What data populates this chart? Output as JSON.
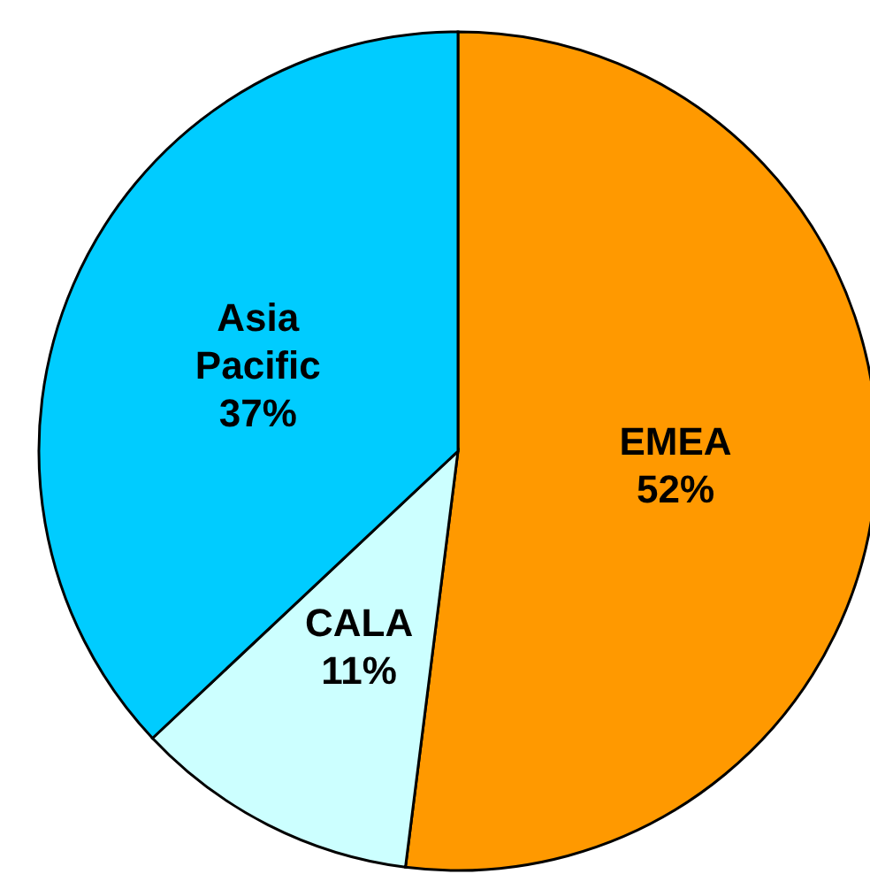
{
  "chart_data": {
    "type": "pie",
    "categories": [
      "EMEA",
      "CALA",
      "Asia Pacific"
    ],
    "values": [
      52,
      11,
      37
    ],
    "colors": [
      "#ff9900",
      "#ccffff",
      "#00ccff"
    ],
    "value_labels": [
      "52%",
      "11%",
      "37%"
    ],
    "legend": false
  }
}
